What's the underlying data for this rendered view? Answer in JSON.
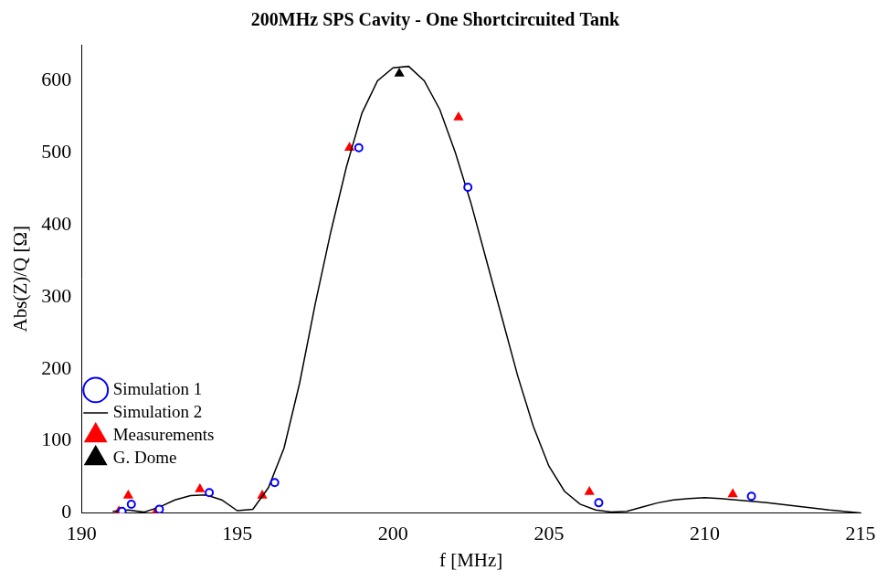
{
  "chart_data": {
    "type": "scatter",
    "title": "200MHz SPS Cavity - One Shortcircuited Tank",
    "x_label": "f [MHz]",
    "y_label": "Abs(Z)/Q [Ω]",
    "xlim": [
      190,
      215
    ],
    "xticks": [
      190,
      195,
      200,
      205,
      210,
      215
    ],
    "ylim": [
      0,
      650
    ],
    "yticks": [
      0,
      100,
      200,
      300,
      400,
      500,
      600
    ],
    "grid": false,
    "legend": "upper right",
    "series": [
      {
        "name": "Simulation 1",
        "type": "scatter",
        "color": "#0000ff",
        "marker": "circle",
        "line_style": "none",
        "x": [
          191.3,
          191.6,
          192.5,
          194.1,
          196.2,
          198.9,
          202.4,
          206.6,
          211.5
        ],
        "values": [
          2,
          12,
          5,
          28,
          42,
          507,
          452,
          14,
          23
        ]
      },
      {
        "name": "Simulation 2",
        "type": "line",
        "color": "#000000",
        "marker": "none",
        "line_style": "solid",
        "x": [
          191.0,
          191.5,
          192.0,
          192.5,
          193.0,
          193.5,
          194.0,
          194.5,
          195.0,
          195.5,
          196.0,
          196.5,
          197.0,
          197.5,
          198.0,
          198.5,
          199.0,
          199.5,
          200.0,
          200.5,
          201.0,
          201.5,
          202.0,
          202.5,
          203.0,
          203.5,
          204.0,
          204.5,
          205.0,
          205.5,
          206.0,
          206.5,
          207.0,
          207.5,
          208.0,
          208.5,
          209.0,
          209.5,
          210.0,
          210.5,
          211.0,
          212.0,
          213.0,
          214.0,
          215.0
        ],
        "values": [
          2,
          4,
          1,
          8,
          18,
          24,
          25,
          18,
          3,
          5,
          35,
          90,
          180,
          290,
          390,
          480,
          555,
          600,
          618,
          620,
          600,
          560,
          500,
          430,
          350,
          270,
          190,
          120,
          65,
          30,
          12,
          4,
          1,
          2,
          8,
          14,
          18,
          20,
          21,
          20,
          18,
          14,
          9,
          4,
          0
        ]
      },
      {
        "name": "Measurements",
        "type": "scatter",
        "color": "#ff0000",
        "marker": "triangle",
        "line_style": "none",
        "x": [
          191.2,
          191.5,
          192.4,
          193.8,
          195.8,
          198.6,
          202.1,
          206.3,
          210.9
        ],
        "values": [
          2,
          24,
          2,
          33,
          24,
          507,
          549,
          29,
          26
        ]
      },
      {
        "name": "G. Dome",
        "type": "scatter",
        "color": "#000000",
        "marker": "triangle",
        "line_style": "none",
        "x": [
          200.2
        ],
        "values": [
          610
        ]
      }
    ]
  }
}
